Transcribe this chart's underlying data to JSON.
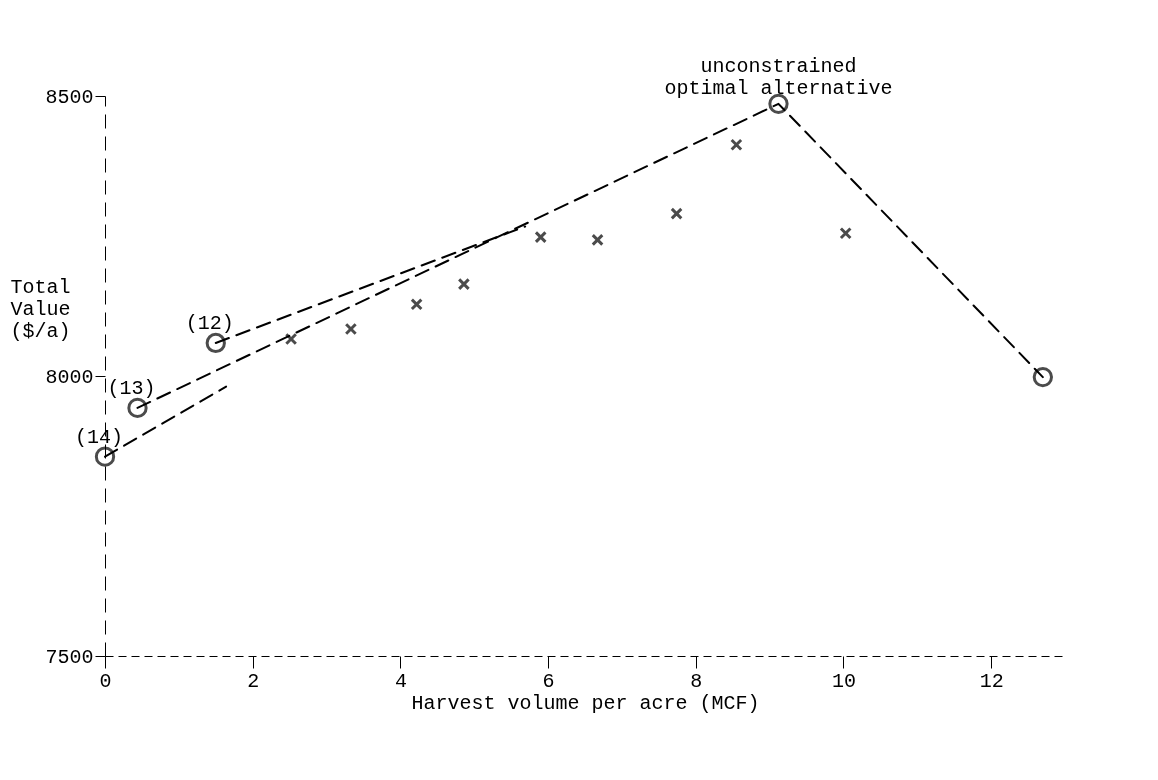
{
  "chart_data": {
    "type": "scatter",
    "xlabel": "Harvest volume per acre (MCF)",
    "ylabel": "Total\nValue\n($/a)",
    "xlim": [
      0,
      13
    ],
    "xticks": [
      0,
      2,
      4,
      6,
      8,
      10,
      12
    ],
    "ylim": [
      7500,
      8500
    ],
    "yticks": [
      7500,
      8000,
      8500
    ],
    "grid": false,
    "series": [
      {
        "type": "line",
        "line_style": "dashed",
        "color": "#000000",
        "x": [
          0.44,
          9.12,
          12.7
        ],
        "values": [
          7943,
          8486,
          7998
        ]
      },
      {
        "type": "line",
        "line_style": "dashed",
        "color": "#000000",
        "x": [
          0,
          1.64
        ],
        "values": [
          7856,
          7981
        ]
      },
      {
        "type": "line",
        "line_style": "dashed",
        "color": "#000000",
        "x": [
          1.5,
          5.69
        ],
        "values": [
          8059,
          8267
        ]
      },
      {
        "marker": "circle",
        "color": "#000000",
        "x": [
          0,
          0.44,
          1.5,
          9.12,
          12.7
        ],
        "values": [
          7856,
          7943,
          8059,
          8486,
          7998
        ]
      },
      {
        "marker": "cross",
        "color": "#000000",
        "x": [
          2.52,
          3.33,
          4.22,
          4.86,
          5.9,
          6.67,
          7.74,
          8.55,
          10.03
        ],
        "values": [
          8066,
          8084,
          8128,
          8164,
          8248,
          8243,
          8290,
          8413,
          8255
        ]
      }
    ],
    "annotations": [
      {
        "text": "(14)",
        "x": 0,
        "y": 7856
      },
      {
        "text": "(13)",
        "x": 0.44,
        "y": 7943
      },
      {
        "text": "(12)",
        "x": 1.5,
        "y": 8059
      },
      {
        "text": "unconstrained\noptimal alternative",
        "x": 9.12,
        "y": 8486
      }
    ]
  }
}
